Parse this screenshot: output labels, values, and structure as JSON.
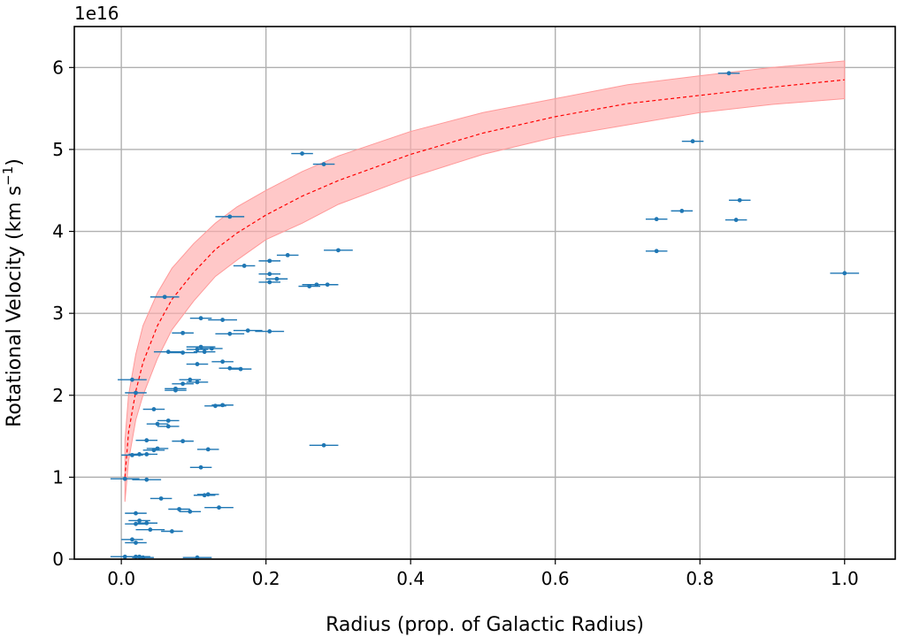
{
  "chart_data": {
    "type": "scatter",
    "xlabel": "Radius (prop. of Galactic Radius)",
    "ylabel": "Rotational Velocity (km s",
    "ylabel_sup": "−1",
    "ylabel_end": ")",
    "offset_text": "1e16",
    "xlim": [
      -0.065,
      1.07
    ],
    "ylim": [
      0,
      6.5
    ],
    "y_scale_factor": 1e+16,
    "grid": true,
    "x_ticks": [
      0.0,
      0.2,
      0.4,
      0.6,
      0.8,
      1.0
    ],
    "x_tick_labels": [
      "0.0",
      "0.2",
      "0.4",
      "0.6",
      "0.8",
      "1.0"
    ],
    "y_ticks": [
      0,
      1,
      2,
      3,
      4,
      5,
      6
    ],
    "y_tick_labels": [
      "0",
      "1",
      "2",
      "3",
      "4",
      "5",
      "6"
    ],
    "colors": {
      "points": "#1f77b4",
      "fit_line": "#ff0000",
      "band": "#ffaaaa"
    },
    "fit": {
      "x": [
        0.005,
        0.01,
        0.02,
        0.03,
        0.05,
        0.07,
        0.1,
        0.13,
        0.16,
        0.2,
        0.25,
        0.3,
        0.4,
        0.5,
        0.6,
        0.7,
        0.8,
        0.9,
        1.0
      ],
      "y": [
        1.0,
        1.55,
        2.05,
        2.4,
        2.85,
        3.17,
        3.5,
        3.78,
        3.98,
        4.2,
        4.43,
        4.62,
        4.94,
        5.2,
        5.4,
        5.56,
        5.66,
        5.76,
        5.85
      ],
      "upper": [
        1.45,
        2.0,
        2.5,
        2.85,
        3.25,
        3.55,
        3.85,
        4.1,
        4.3,
        4.5,
        4.73,
        4.92,
        5.22,
        5.45,
        5.62,
        5.79,
        5.9,
        6.0,
        6.08
      ],
      "lower": [
        0.7,
        1.2,
        1.7,
        2.0,
        2.45,
        2.8,
        3.15,
        3.45,
        3.65,
        3.9,
        4.1,
        4.33,
        4.66,
        4.94,
        5.15,
        5.3,
        5.45,
        5.55,
        5.62
      ]
    },
    "series": [
      {
        "x": [
          0.84,
          0.79,
          0.25,
          0.28,
          0.855,
          0.775,
          0.74,
          0.85,
          0.15,
          0.74,
          1.0,
          0.3,
          0.23,
          0.205,
          0.17,
          0.205,
          0.215,
          0.205,
          0.285,
          0.27,
          0.26,
          0.06,
          0.11,
          0.14,
          0.175,
          0.205,
          0.085,
          0.15,
          0.11,
          0.125,
          0.105,
          0.115,
          0.065,
          0.085,
          0.14,
          0.105,
          0.15,
          0.165,
          0.095,
          0.105,
          0.085,
          0.075,
          0.075,
          0.015,
          0.02,
          0.14,
          0.13,
          0.045,
          0.065,
          0.05,
          0.065,
          0.035,
          0.085,
          0.28,
          0.05,
          0.045,
          0.12,
          0.035,
          0.025,
          0.015,
          0.11,
          0.005,
          0.035,
          0.12,
          0.115,
          0.055,
          0.135,
          0.08,
          0.095,
          0.02,
          0.025,
          0.035,
          0.02,
          0.04,
          0.07,
          0.015,
          0.02,
          0.005,
          0.02,
          0.025,
          0.03,
          0.105
        ],
        "y": [
          5.93,
          5.1,
          4.95,
          4.82,
          4.38,
          4.25,
          4.15,
          4.14,
          4.18,
          3.76,
          3.49,
          3.77,
          3.71,
          3.64,
          3.58,
          3.48,
          3.42,
          3.38,
          3.35,
          3.35,
          3.33,
          3.2,
          2.94,
          2.92,
          2.79,
          2.78,
          2.76,
          2.75,
          2.59,
          2.57,
          2.56,
          2.53,
          2.53,
          2.52,
          2.41,
          2.38,
          2.33,
          2.32,
          2.19,
          2.16,
          2.14,
          2.08,
          2.06,
          2.19,
          2.03,
          1.88,
          1.87,
          1.83,
          1.69,
          1.65,
          1.62,
          1.45,
          1.44,
          1.39,
          1.35,
          1.33,
          1.34,
          1.28,
          1.28,
          1.27,
          1.12,
          0.98,
          0.97,
          0.79,
          0.78,
          0.74,
          0.63,
          0.61,
          0.58,
          0.56,
          0.47,
          0.44,
          0.43,
          0.36,
          0.34,
          0.24,
          0.2,
          0.03,
          0.03,
          0.03,
          0.02,
          0.02
        ],
        "xerr": [
          0.015,
          0.015,
          0.015,
          0.015,
          0.015,
          0.015,
          0.015,
          0.015,
          0.02,
          0.015,
          0.02,
          0.02,
          0.015,
          0.015,
          0.015,
          0.015,
          0.015,
          0.015,
          0.015,
          0.02,
          0.015,
          0.02,
          0.015,
          0.02,
          0.02,
          0.02,
          0.015,
          0.02,
          0.02,
          0.015,
          0.015,
          0.015,
          0.02,
          0.02,
          0.015,
          0.015,
          0.015,
          0.015,
          0.015,
          0.015,
          0.015,
          0.015,
          0.015,
          0.02,
          0.015,
          0.015,
          0.015,
          0.015,
          0.015,
          0.015,
          0.015,
          0.015,
          0.015,
          0.02,
          0.015,
          0.015,
          0.015,
          0.015,
          0.015,
          0.015,
          0.015,
          0.02,
          0.02,
          0.015,
          0.015,
          0.015,
          0.02,
          0.015,
          0.015,
          0.015,
          0.015,
          0.015,
          0.015,
          0.02,
          0.015,
          0.015,
          0.015,
          0.02,
          0.015,
          0.015,
          0.015,
          0.02
        ]
      }
    ]
  }
}
